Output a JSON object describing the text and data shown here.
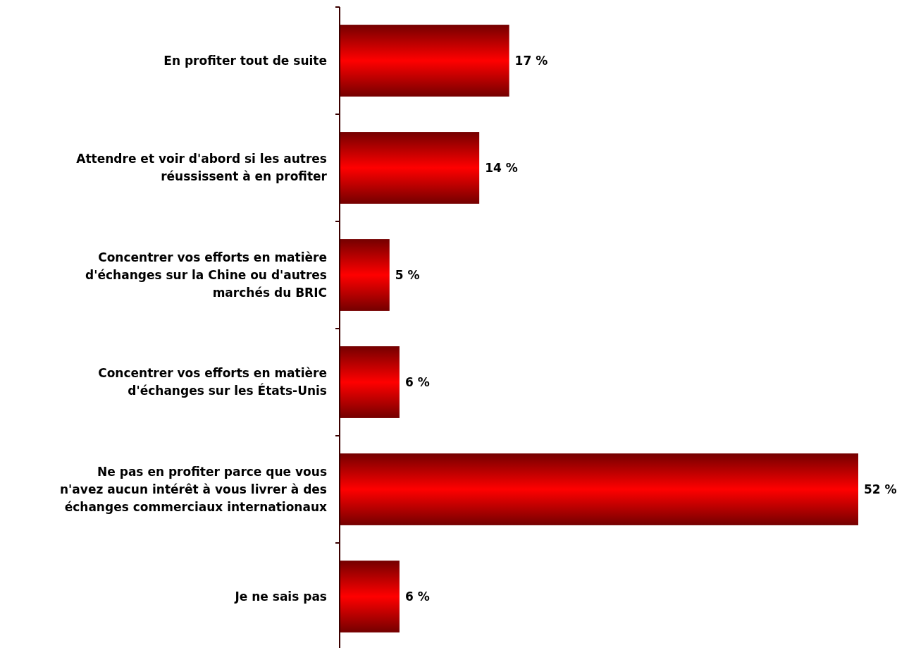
{
  "chart_data": {
    "type": "bar",
    "orientation": "horizontal",
    "categories": [
      "En profiter tout de suite",
      "Attendre et voir d'abord si les autres\nréussissent à en profiter",
      "Concentrer vos efforts en matière\nd'échanges sur la Chine ou d'autres\nmarchés du BRIC",
      "Concentrer vos efforts en matière\nd'échanges sur les États-Unis",
      "Ne pas en profiter parce que vous\nn'avez aucun intérêt à vous livrer à des\néchanges commerciaux internationaux",
      "Je ne sais pas"
    ],
    "values": [
      17,
      14,
      5,
      6,
      52,
      6
    ],
    "value_labels": [
      "17 %",
      "14 %",
      "5 %",
      "6 %",
      "52 %",
      "6 %"
    ],
    "color": "#ff0000"
  }
}
